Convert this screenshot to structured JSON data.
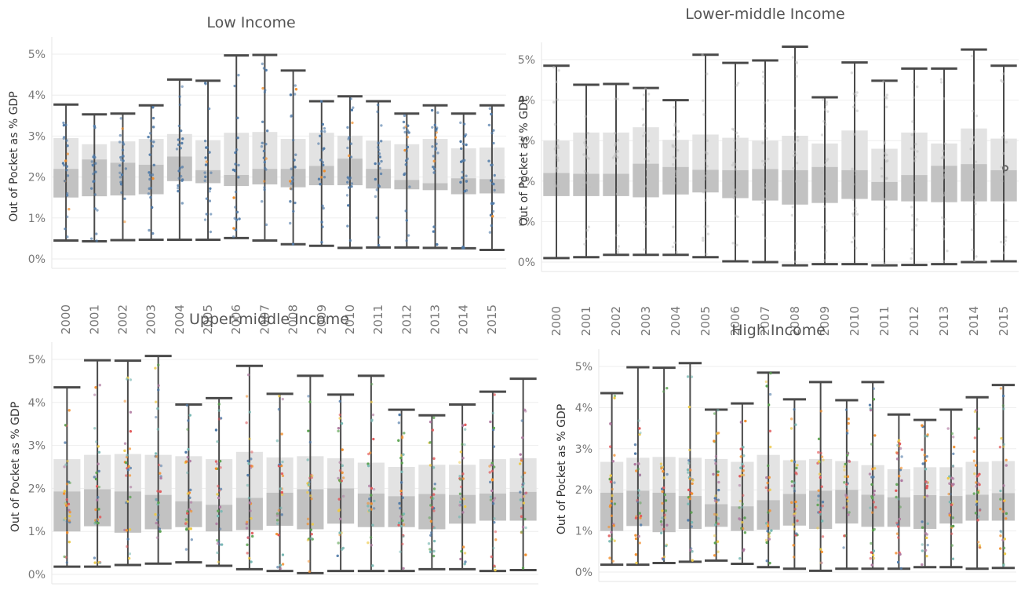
{
  "colors": {
    "box_upper": "#e3e3e3",
    "box_lower": "#c2c2c2",
    "whisker": "#4a4a4a",
    "grid": "#eeeeee",
    "dots_low": "#4e79a7",
    "dots_multi": [
      "#4e79a7",
      "#f28e2b",
      "#e15759",
      "#76b7b2",
      "#59a14f",
      "#edc948",
      "#b07aa1"
    ]
  },
  "chart_data": [
    {
      "type": "box",
      "title": "Low Income",
      "ylabel": "Out of Pocket as % GDP",
      "yticks": [
        "0%",
        "1%",
        "2%",
        "3%",
        "4%",
        "5%"
      ],
      "ylim": [
        0,
        5.2
      ],
      "categories": [
        "2000",
        "2001",
        "2002",
        "2003",
        "2004",
        "2005",
        "2006",
        "2007",
        "2008",
        "2009",
        "2010",
        "2011",
        "2012",
        "2013",
        "2014",
        "2015"
      ],
      "lower_whisker": [
        0.45,
        0.43,
        0.46,
        0.47,
        0.47,
        0.47,
        0.51,
        0.45,
        0.36,
        0.32,
        0.27,
        0.28,
        0.28,
        0.27,
        0.26,
        0.22
      ],
      "q1": [
        1.5,
        1.53,
        1.55,
        1.58,
        1.9,
        1.85,
        1.78,
        1.82,
        1.75,
        1.8,
        1.8,
        1.72,
        1.7,
        1.68,
        1.58,
        1.6
      ],
      "median": [
        2.2,
        2.43,
        2.35,
        2.3,
        2.5,
        2.17,
        2.05,
        2.2,
        2.2,
        2.27,
        2.45,
        2.2,
        1.93,
        1.85,
        1.97,
        1.95
      ],
      "q3": [
        2.95,
        2.8,
        2.87,
        2.93,
        3.05,
        2.9,
        3.08,
        3.1,
        2.93,
        3.08,
        3.01,
        2.89,
        2.8,
        2.93,
        2.7,
        2.72
      ],
      "upper_whisker": [
        3.77,
        3.53,
        3.55,
        3.75,
        4.38,
        4.35,
        4.97,
        4.98,
        4.6,
        3.85,
        3.97,
        3.85,
        3.55,
        3.75,
        3.55,
        3.75
      ],
      "dot_style": "low"
    },
    {
      "type": "box",
      "title": "Lower-middle Income",
      "ylabel": "Out of Pocket as % GDP",
      "yticks": [
        "0%",
        "1%",
        "2%",
        "3%",
        "4%",
        "5%"
      ],
      "ylim": [
        0,
        5.4
      ],
      "categories": [
        "2000",
        "2001",
        "2002",
        "2003",
        "2004",
        "2005",
        "2006",
        "2007",
        "2008",
        "2009",
        "2010",
        "2011",
        "2012",
        "2013",
        "2014",
        "2015"
      ],
      "lower_whisker": [
        0.1,
        0.12,
        0.18,
        0.18,
        0.18,
        0.12,
        0.02,
        0.0,
        -0.08,
        -0.05,
        -0.05,
        -0.08,
        -0.07,
        -0.05,
        0.0,
        0.02
      ],
      "q1": [
        1.63,
        1.63,
        1.63,
        1.6,
        1.67,
        1.72,
        1.58,
        1.52,
        1.42,
        1.46,
        1.56,
        1.52,
        1.5,
        1.48,
        1.5,
        1.5
      ],
      "median": [
        2.2,
        2.18,
        2.18,
        2.43,
        2.35,
        2.28,
        2.27,
        2.3,
        2.27,
        2.35,
        2.27,
        1.98,
        2.15,
        2.38,
        2.42,
        2.27
      ],
      "q3": [
        3.0,
        3.2,
        3.2,
        3.33,
        3.02,
        3.15,
        3.07,
        3.0,
        3.12,
        2.93,
        3.25,
        2.8,
        3.2,
        2.93,
        3.3,
        3.05
      ],
      "upper_whisker": [
        4.85,
        4.38,
        4.4,
        4.3,
        4.0,
        5.12,
        4.92,
        4.98,
        5.32,
        4.07,
        4.93,
        4.48,
        4.78,
        4.78,
        5.25,
        4.85
      ],
      "dot_style": "faint"
    },
    {
      "type": "box",
      "title": "Upper-middle Income",
      "ylabel": "Out of Pocket as % GDP",
      "yticks": [
        "0%",
        "1%",
        "2%",
        "3%",
        "4%",
        "5%"
      ],
      "ylim": [
        0,
        5.2
      ],
      "categories": [
        "2000",
        "2001",
        "2002",
        "2003",
        "2004",
        "2005",
        "2006",
        "2007",
        "2008",
        "2009",
        "2010",
        "2011",
        "2012",
        "2013",
        "2014",
        "2015"
      ],
      "lower_whisker": [
        0.18,
        0.18,
        0.22,
        0.25,
        0.28,
        0.2,
        0.12,
        0.08,
        0.03,
        0.08,
        0.08,
        0.08,
        0.12,
        0.12,
        0.08,
        0.1
      ],
      "q1": [
        1.0,
        1.12,
        0.97,
        1.05,
        1.1,
        1.0,
        1.03,
        1.13,
        1.05,
        1.18,
        1.1,
        1.1,
        1.05,
        1.18,
        1.25,
        1.25
      ],
      "median": [
        1.93,
        1.98,
        1.93,
        1.85,
        1.7,
        1.62,
        1.78,
        1.9,
        1.98,
        2.0,
        1.88,
        1.82,
        1.87,
        1.85,
        1.88,
        1.92
      ],
      "q3": [
        2.68,
        2.78,
        2.8,
        2.78,
        2.75,
        2.68,
        2.85,
        2.72,
        2.75,
        2.7,
        2.6,
        2.5,
        2.55,
        2.55,
        2.68,
        2.7
      ],
      "upper_whisker": [
        4.35,
        4.98,
        4.97,
        5.08,
        3.95,
        4.1,
        4.85,
        4.2,
        4.62,
        4.18,
        4.62,
        3.83,
        3.7,
        3.95,
        4.25,
        4.55
      ],
      "dot_style": "multi"
    },
    {
      "type": "box",
      "title": "High Income",
      "ylabel": "Out of Pocket as % GDP",
      "yticks": [
        "0%",
        "1%",
        "2%",
        "3%",
        "4%",
        "5%"
      ],
      "ylim": [
        0,
        5.2
      ],
      "categories": [
        "2000",
        "2001",
        "2002",
        "2003",
        "2004",
        "2005",
        "2006",
        "2007",
        "2008",
        "2009",
        "2010",
        "2011",
        "2012",
        "2013",
        "2014",
        "2015"
      ],
      "lower_whisker": [
        0.18,
        0.18,
        0.22,
        0.25,
        0.28,
        0.2,
        0.12,
        0.08,
        0.03,
        0.08,
        0.08,
        0.08,
        0.12,
        0.12,
        0.08,
        0.1
      ],
      "q1": [
        1.0,
        1.12,
        0.97,
        1.05,
        1.1,
        1.0,
        1.03,
        1.13,
        1.05,
        1.18,
        1.1,
        1.1,
        1.05,
        1.18,
        1.25,
        1.25
      ],
      "median": [
        1.93,
        1.98,
        1.93,
        1.85,
        1.65,
        1.6,
        1.75,
        1.9,
        1.98,
        2.0,
        1.88,
        1.82,
        1.87,
        1.85,
        1.88,
        1.92
      ],
      "q3": [
        2.68,
        2.78,
        2.8,
        2.78,
        2.75,
        2.68,
        2.85,
        2.72,
        2.75,
        2.7,
        2.6,
        2.5,
        2.55,
        2.55,
        2.68,
        2.7
      ],
      "upper_whisker": [
        4.35,
        4.98,
        4.97,
        5.08,
        3.95,
        4.1,
        4.85,
        4.2,
        4.62,
        4.18,
        4.62,
        3.83,
        3.7,
        3.95,
        4.25,
        4.55
      ],
      "dot_style": "multi"
    }
  ]
}
